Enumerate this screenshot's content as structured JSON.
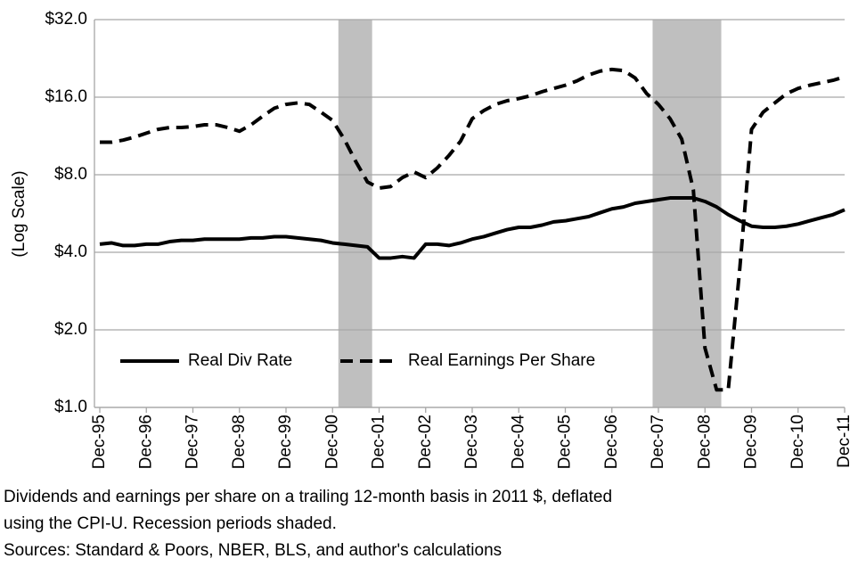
{
  "chart_data": {
    "type": "line",
    "y_label": "(Log Scale)",
    "log_scale": true,
    "grid": true,
    "legend": "lower left",
    "categories": [
      "Dec-95",
      null,
      null,
      null,
      "Dec-96",
      null,
      null,
      null,
      "Dec-97",
      null,
      null,
      null,
      "Dec-98",
      null,
      null,
      null,
      "Dec-99",
      null,
      null,
      null,
      "Dec-00",
      null,
      null,
      null,
      "Dec-01",
      null,
      null,
      null,
      "Dec-02",
      null,
      null,
      null,
      "Dec-03",
      null,
      null,
      null,
      "Dec-04",
      null,
      null,
      null,
      "Dec-05",
      null,
      null,
      null,
      "Dec-06",
      null,
      null,
      null,
      "Dec-07",
      null,
      null,
      null,
      "Dec-08",
      null,
      null,
      null,
      "Dec-09",
      null,
      null,
      null,
      "Dec-10",
      null,
      null,
      null,
      "Dec-11"
    ],
    "series": [
      {
        "name": "Real Div Rate",
        "color": "#000000",
        "dash": false,
        "values": [
          4.3,
          4.35,
          4.25,
          4.25,
          4.3,
          4.3,
          4.4,
          4.45,
          4.45,
          4.5,
          4.5,
          4.5,
          4.5,
          4.55,
          4.55,
          4.6,
          4.6,
          4.55,
          4.5,
          4.45,
          4.35,
          4.3,
          4.25,
          4.2,
          3.8,
          3.8,
          3.85,
          3.8,
          4.3,
          4.3,
          4.25,
          4.35,
          4.5,
          4.6,
          4.75,
          4.9,
          5.0,
          5.0,
          5.1,
          5.25,
          5.3,
          5.4,
          5.5,
          5.7,
          5.9,
          6.0,
          6.2,
          6.3,
          6.4,
          6.5,
          6.5,
          6.5,
          6.3,
          6.0,
          5.6,
          5.3,
          5.05,
          5.0,
          5.0,
          5.05,
          5.15,
          5.3,
          5.45,
          5.6,
          5.85
        ]
      },
      {
        "name": "Real Earnings Per Share",
        "color": "#000000",
        "dash": true,
        "values": [
          10.7,
          10.7,
          10.9,
          11.2,
          11.6,
          12.0,
          12.2,
          12.2,
          12.3,
          12.5,
          12.5,
          12.2,
          11.8,
          12.5,
          13.5,
          14.5,
          15.0,
          15.2,
          15.0,
          14.0,
          13.0,
          11.0,
          9.0,
          7.5,
          7.1,
          7.2,
          7.8,
          8.2,
          7.8,
          8.5,
          9.5,
          10.8,
          13.2,
          14.2,
          15.0,
          15.5,
          15.8,
          16.2,
          16.8,
          17.3,
          17.8,
          18.5,
          19.5,
          20.2,
          20.5,
          20.3,
          19.0,
          16.5,
          15.0,
          13.2,
          11.0,
          7.0,
          1.7,
          1.17,
          1.17,
          3.5,
          12.0,
          14.0,
          15.2,
          16.5,
          17.3,
          17.8,
          18.2,
          18.6,
          19.2
        ]
      }
    ],
    "shaded": [
      {
        "from": 20.5,
        "to": 23.4
      },
      {
        "from": 47.5,
        "to": 53.4
      }
    ],
    "shade_color": "#bfbfbf",
    "ylim": [
      1,
      32
    ],
    "yticks": [
      {
        "value": 1,
        "label": "$1.0"
      },
      {
        "value": 2,
        "label": "$2.0"
      },
      {
        "value": 4,
        "label": "$4.0"
      },
      {
        "value": 8,
        "label": "$8.0"
      },
      {
        "value": 16,
        "label": "$16.0"
      },
      {
        "value": 32,
        "label": "$32.0"
      }
    ],
    "notes": [
      "Dividends and earnings per share on a trailing 12-month basis in 2011 $, deflated",
      "using the CPI-U. Recession periods shaded.",
      "Sources: Standard & Poors, NBER,  BLS, and author's calculations"
    ]
  }
}
